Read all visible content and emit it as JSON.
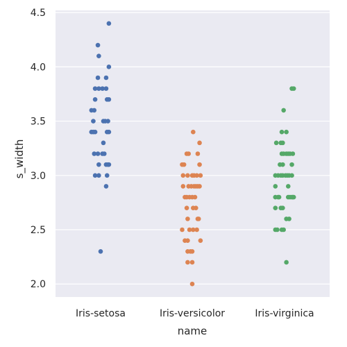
{
  "chart_data": {
    "type": "scatter",
    "subtype": "strip",
    "xlabel": "name",
    "ylabel": "s_width",
    "ylim": [
      1.88,
      4.52
    ],
    "yticks": [
      "2.0",
      "2.5",
      "3.0",
      "3.5",
      "4.0",
      "4.5"
    ],
    "grid": true,
    "categories": [
      "Iris-setosa",
      "Iris-versicolor",
      "Iris-virginica"
    ],
    "colors": [
      "#4c72b0",
      "#dd8452",
      "#55a868"
    ],
    "background": "#eaeaf2",
    "series": [
      {
        "category": "Iris-setosa",
        "points": [
          {
            "x": 0.09,
            "y": 4.4
          },
          {
            "x": -0.03,
            "y": 4.2
          },
          {
            "x": -0.02,
            "y": 4.1
          },
          {
            "x": 0.09,
            "y": 4.0
          },
          {
            "x": -0.03,
            "y": 3.9
          },
          {
            "x": 0.06,
            "y": 3.9
          },
          {
            "x": -0.06,
            "y": 3.8
          },
          {
            "x": -0.02,
            "y": 3.8
          },
          {
            "x": 0.02,
            "y": 3.8
          },
          {
            "x": 0.06,
            "y": 3.8
          },
          {
            "x": -0.06,
            "y": 3.7
          },
          {
            "x": 0.07,
            "y": 3.7
          },
          {
            "x": 0.09,
            "y": 3.7
          },
          {
            "x": -0.1,
            "y": 3.6
          },
          {
            "x": -0.07,
            "y": 3.6
          },
          {
            "x": -0.08,
            "y": 3.5
          },
          {
            "x": 0.03,
            "y": 3.5
          },
          {
            "x": 0.05,
            "y": 3.5
          },
          {
            "x": 0.08,
            "y": 3.5
          },
          {
            "x": -0.1,
            "y": 3.4
          },
          {
            "x": -0.08,
            "y": 3.4
          },
          {
            "x": -0.06,
            "y": 3.4
          },
          {
            "x": 0.07,
            "y": 3.4
          },
          {
            "x": 0.09,
            "y": 3.4
          },
          {
            "x": 0.03,
            "y": 3.3
          },
          {
            "x": -0.07,
            "y": 3.2
          },
          {
            "x": -0.03,
            "y": 3.2
          },
          {
            "x": 0.02,
            "y": 3.2
          },
          {
            "x": 0.04,
            "y": 3.2
          },
          {
            "x": -0.02,
            "y": 3.1
          },
          {
            "x": 0.06,
            "y": 3.1
          },
          {
            "x": 0.08,
            "y": 3.1
          },
          {
            "x": 0.09,
            "y": 3.1
          },
          {
            "x": -0.06,
            "y": 3.0
          },
          {
            "x": -0.02,
            "y": 3.0
          },
          {
            "x": 0.07,
            "y": 3.0
          },
          {
            "x": 0.06,
            "y": 2.9
          },
          {
            "x": 0.0,
            "y": 2.3
          }
        ]
      },
      {
        "category": "Iris-versicolor",
        "points": [
          {
            "x": 0.01,
            "y": 3.4
          },
          {
            "x": 0.08,
            "y": 3.3
          },
          {
            "x": -0.06,
            "y": 3.2
          },
          {
            "x": -0.04,
            "y": 3.2
          },
          {
            "x": 0.06,
            "y": 3.2
          },
          {
            "x": -0.11,
            "y": 3.1
          },
          {
            "x": -0.09,
            "y": 3.1
          },
          {
            "x": 0.08,
            "y": 3.1
          },
          {
            "x": -0.1,
            "y": 3.0
          },
          {
            "x": -0.05,
            "y": 3.0
          },
          {
            "x": 0.0,
            "y": 3.0
          },
          {
            "x": 0.02,
            "y": 3.0
          },
          {
            "x": 0.05,
            "y": 3.0
          },
          {
            "x": 0.09,
            "y": 3.0
          },
          {
            "x": -0.1,
            "y": 2.9
          },
          {
            "x": -0.04,
            "y": 2.9
          },
          {
            "x": -0.01,
            "y": 2.9
          },
          {
            "x": 0.02,
            "y": 2.9
          },
          {
            "x": 0.04,
            "y": 2.9
          },
          {
            "x": 0.06,
            "y": 2.9
          },
          {
            "x": 0.08,
            "y": 2.9
          },
          {
            "x": -0.08,
            "y": 2.8
          },
          {
            "x": -0.06,
            "y": 2.8
          },
          {
            "x": -0.03,
            "y": 2.8
          },
          {
            "x": 0.0,
            "y": 2.8
          },
          {
            "x": 0.03,
            "y": 2.8
          },
          {
            "x": -0.06,
            "y": 2.7
          },
          {
            "x": 0.01,
            "y": 2.7
          },
          {
            "x": 0.04,
            "y": 2.7
          },
          {
            "x": -0.05,
            "y": 2.6
          },
          {
            "x": 0.06,
            "y": 2.6
          },
          {
            "x": 0.07,
            "y": 2.6
          },
          {
            "x": -0.11,
            "y": 2.5
          },
          {
            "x": -0.03,
            "y": 2.5
          },
          {
            "x": 0.01,
            "y": 2.5
          },
          {
            "x": 0.05,
            "y": 2.5
          },
          {
            "x": -0.08,
            "y": 2.4
          },
          {
            "x": -0.05,
            "y": 2.4
          },
          {
            "x": 0.09,
            "y": 2.4
          },
          {
            "x": -0.05,
            "y": 2.3
          },
          {
            "x": -0.02,
            "y": 2.3
          },
          {
            "x": 0.0,
            "y": 2.3
          },
          {
            "x": -0.05,
            "y": 2.2
          },
          {
            "x": 0.0,
            "y": 2.2
          },
          {
            "x": 0.0,
            "y": 2.0
          }
        ]
      },
      {
        "category": "Iris-virginica",
        "points": [
          {
            "x": 0.08,
            "y": 3.8
          },
          {
            "x": 0.1,
            "y": 3.8
          },
          {
            "x": -0.01,
            "y": 3.6
          },
          {
            "x": -0.03,
            "y": 3.4
          },
          {
            "x": 0.02,
            "y": 3.4
          },
          {
            "x": -0.09,
            "y": 3.3
          },
          {
            "x": -0.04,
            "y": 3.3
          },
          {
            "x": -0.02,
            "y": 3.3
          },
          {
            "x": -0.03,
            "y": 3.2
          },
          {
            "x": -0.01,
            "y": 3.2
          },
          {
            "x": 0.02,
            "y": 3.2
          },
          {
            "x": 0.04,
            "y": 3.2
          },
          {
            "x": 0.06,
            "y": 3.2
          },
          {
            "x": 0.09,
            "y": 3.2
          },
          {
            "x": -0.05,
            "y": 3.1
          },
          {
            "x": -0.02,
            "y": 3.1
          },
          {
            "x": 0.08,
            "y": 3.1
          },
          {
            "x": -0.1,
            "y": 3.0
          },
          {
            "x": -0.07,
            "y": 3.0
          },
          {
            "x": -0.04,
            "y": 3.0
          },
          {
            "x": -0.02,
            "y": 3.0
          },
          {
            "x": 0.01,
            "y": 3.0
          },
          {
            "x": 0.03,
            "y": 3.0
          },
          {
            "x": 0.05,
            "y": 3.0
          },
          {
            "x": 0.08,
            "y": 3.0
          },
          {
            "x": -0.1,
            "y": 2.9
          },
          {
            "x": 0.04,
            "y": 2.9
          },
          {
            "x": -0.1,
            "y": 2.8
          },
          {
            "x": -0.07,
            "y": 2.8
          },
          {
            "x": -0.06,
            "y": 2.8
          },
          {
            "x": 0.04,
            "y": 2.8
          },
          {
            "x": 0.06,
            "y": 2.8
          },
          {
            "x": 0.08,
            "y": 2.8
          },
          {
            "x": 0.09,
            "y": 2.8
          },
          {
            "x": 0.1,
            "y": 2.8
          },
          {
            "x": -0.1,
            "y": 2.7
          },
          {
            "x": -0.04,
            "y": 2.7
          },
          {
            "x": -0.02,
            "y": 2.7
          },
          {
            "x": 0.02,
            "y": 2.6
          },
          {
            "x": 0.05,
            "y": 2.6
          },
          {
            "x": -0.1,
            "y": 2.5
          },
          {
            "x": -0.08,
            "y": 2.5
          },
          {
            "x": -0.03,
            "y": 2.5
          },
          {
            "x": -0.01,
            "y": 2.5
          },
          {
            "x": 0.02,
            "y": 2.2
          }
        ]
      }
    ]
  }
}
